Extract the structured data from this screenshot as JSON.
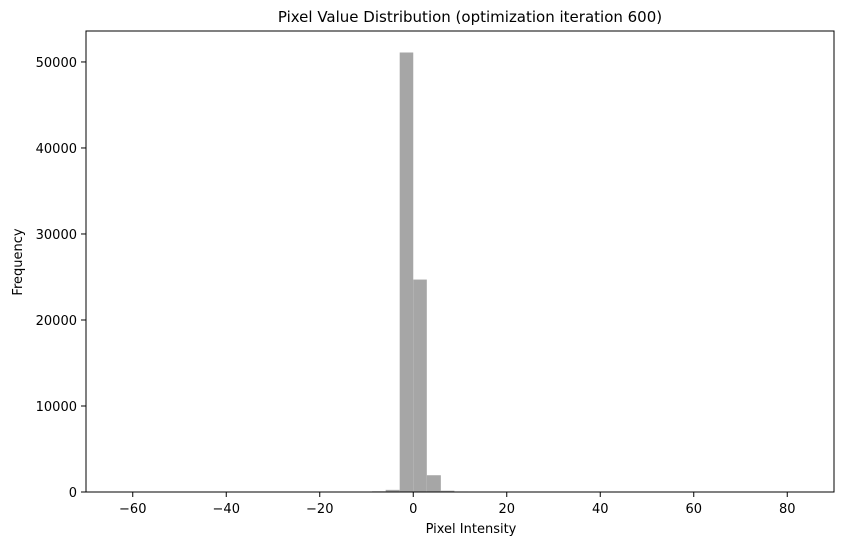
{
  "chart_data": {
    "type": "bar",
    "title": "Pixel Value Distribution (optimization iteration 600)",
    "xlabel": "Pixel Intensity",
    "ylabel": "Frequency",
    "xlim": [
      -70,
      90
    ],
    "ylim": [
      0,
      53600
    ],
    "xticks": [
      -60,
      -40,
      -20,
      0,
      20,
      40,
      60,
      80
    ],
    "xtick_labels": [
      "−60",
      "−40",
      "−20",
      "0",
      "20",
      "40",
      "60",
      "80"
    ],
    "yticks": [
      0,
      10000,
      20000,
      30000,
      40000,
      50000
    ],
    "ytick_labels": [
      "0",
      "10000",
      "20000",
      "30000",
      "40000",
      "50000"
    ],
    "bar_color": "#a6a6a6",
    "grid": false,
    "bins": [
      {
        "x0": -11.7,
        "x1": -8.8,
        "value": 30
      },
      {
        "x0": -8.8,
        "x1": -5.9,
        "value": 80
      },
      {
        "x0": -5.9,
        "x1": -2.9,
        "value": 250
      },
      {
        "x0": -2.9,
        "x1": 0.0,
        "value": 51100
      },
      {
        "x0": 0.0,
        "x1": 2.9,
        "value": 24700
      },
      {
        "x0": 2.9,
        "x1": 5.9,
        "value": 1950
      },
      {
        "x0": 5.9,
        "x1": 8.8,
        "value": 150
      },
      {
        "x0": 8.8,
        "x1": 11.7,
        "value": 60
      },
      {
        "x0": 11.7,
        "x1": 14.7,
        "value": 30
      }
    ]
  }
}
